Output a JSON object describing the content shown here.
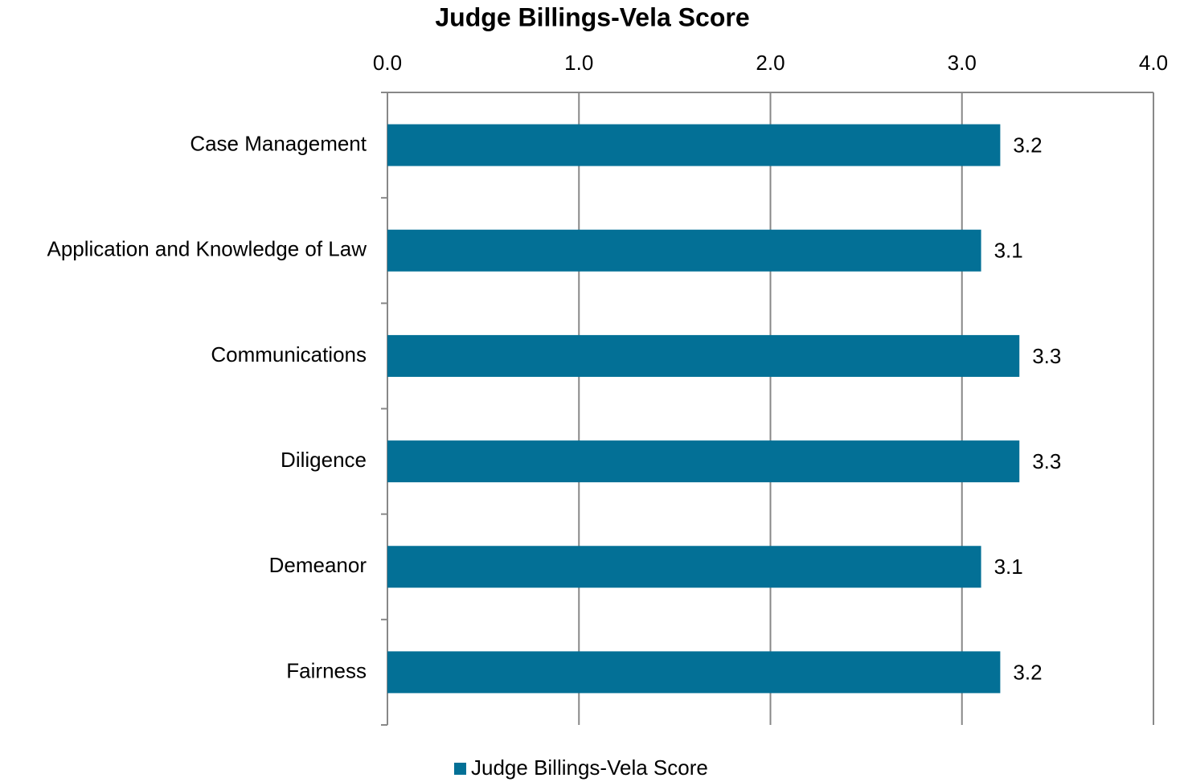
{
  "chart_data": {
    "type": "bar",
    "orientation": "horizontal",
    "title": "Judge Billings-Vela Score",
    "categories": [
      "Case Management",
      "Application and Knowledge of Law",
      "Communications",
      "Diligence",
      "Demeanor",
      "Fairness"
    ],
    "series": [
      {
        "name": "Judge Billings-Vela Score",
        "color": "#037096",
        "values": [
          3.2,
          3.1,
          3.3,
          3.3,
          3.1,
          3.2
        ]
      }
    ],
    "xlim": [
      0,
      4
    ],
    "xticks": [
      {
        "value": 0,
        "label": "0.0"
      },
      {
        "value": 1,
        "label": "1.0"
      },
      {
        "value": 2,
        "label": "2.0"
      },
      {
        "value": 3,
        "label": "3.0"
      },
      {
        "value": 4,
        "label": "4.0"
      }
    ],
    "grid": true,
    "legend": "bottom"
  }
}
